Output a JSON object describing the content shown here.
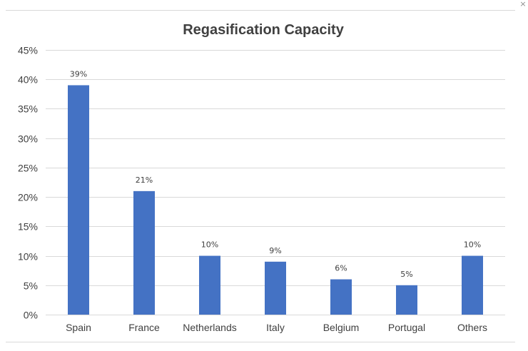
{
  "window": {
    "close_icon": "close-icon",
    "close_glyph": "×"
  },
  "chart_data": {
    "type": "bar",
    "title": "Regasification Capacity",
    "xlabel": "",
    "ylabel": "",
    "categories": [
      "Spain",
      "France",
      "Netherlands",
      "Italy",
      "Belgium",
      "Portugal",
      "Others"
    ],
    "values": [
      39,
      21,
      10,
      9,
      6,
      5,
      10
    ],
    "data_labels": [
      "39%",
      "21%",
      "10%",
      "9%",
      "6%",
      "5%",
      "10%"
    ],
    "ylim": [
      0,
      45
    ],
    "y_ticks": [
      0,
      5,
      10,
      15,
      20,
      25,
      30,
      35,
      40,
      45
    ],
    "y_tick_labels": [
      "0%",
      "5%",
      "10%",
      "15%",
      "20%",
      "25%",
      "30%",
      "35%",
      "40%",
      "45%"
    ],
    "grid": true,
    "legend": "none",
    "bar_color": "#4472C4"
  }
}
